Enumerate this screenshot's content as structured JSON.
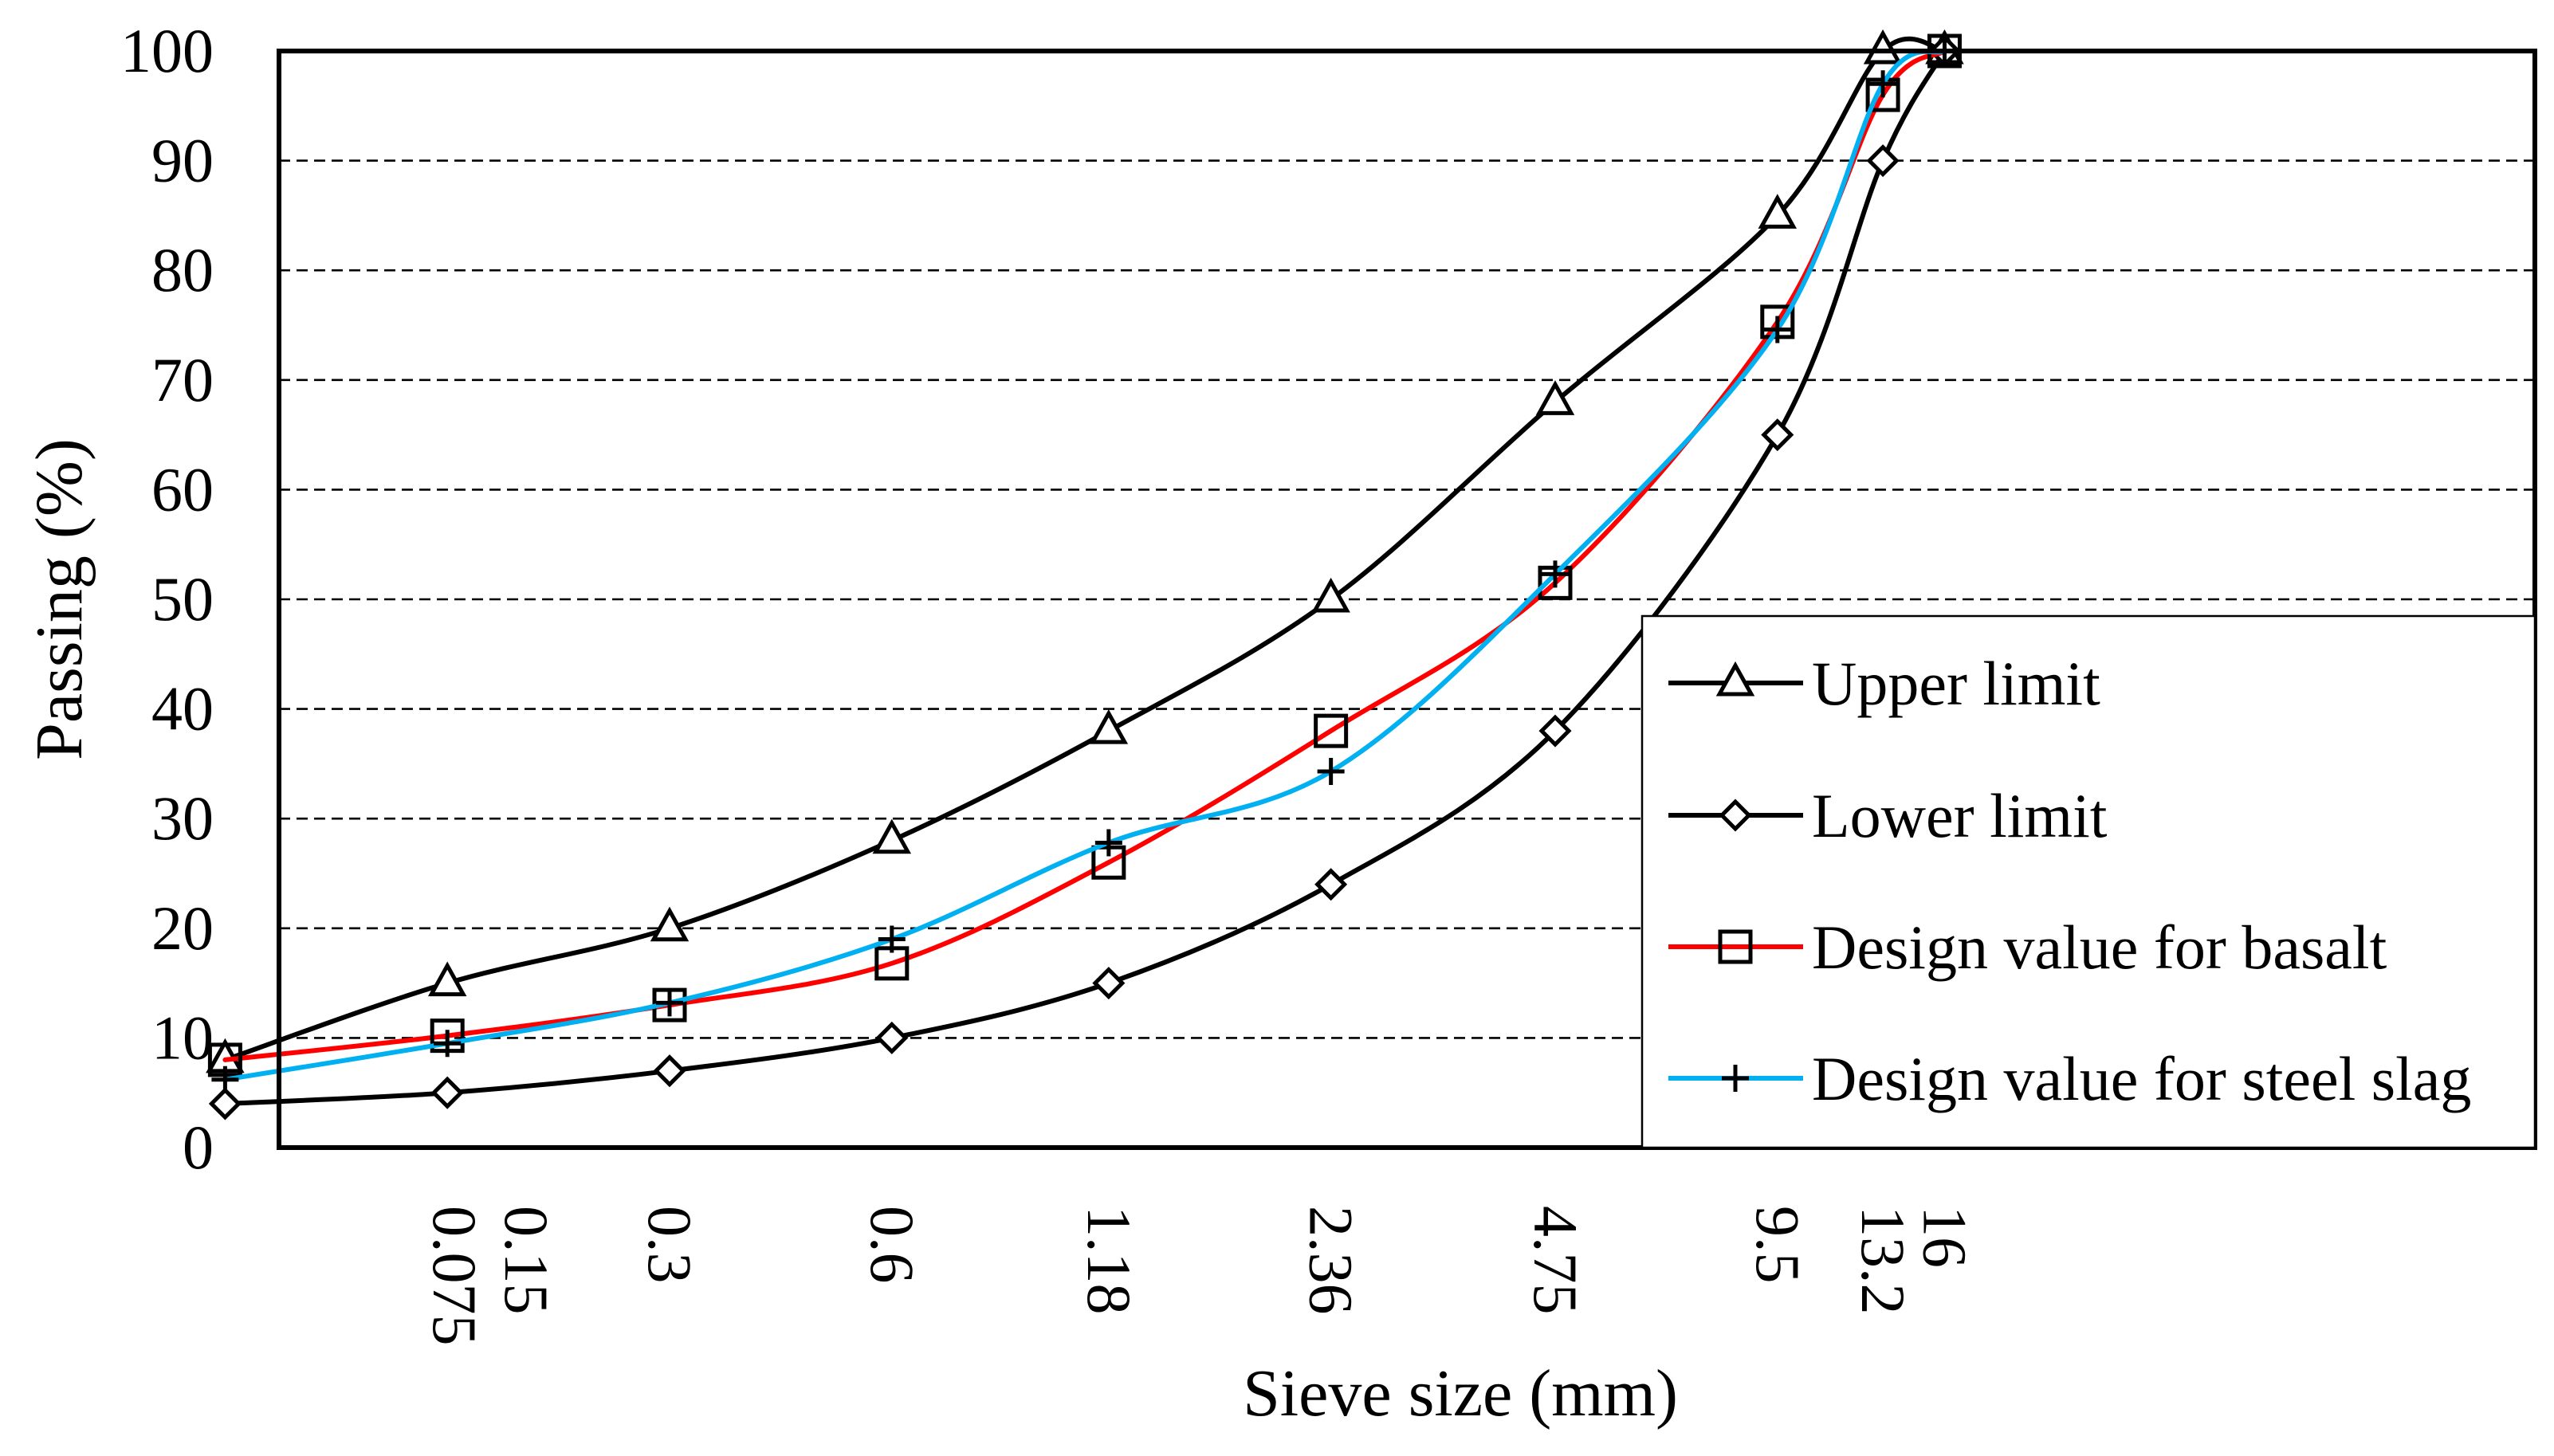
{
  "chart_data": {
    "type": "line",
    "title": "",
    "xlabel": "Sieve size (mm)",
    "ylabel": "Passing (%)",
    "ylim": [
      0,
      100
    ],
    "yticks": [
      "0",
      "10",
      "20",
      "30",
      "40",
      "50",
      "60",
      "70",
      "80",
      "90",
      "100"
    ],
    "grid": "horizontal-dashed",
    "legend_position": "bottom-right",
    "x_scale": "log2-spaced sieve sizes",
    "categories": [
      "0.075",
      "0.15",
      "0.3",
      "0.6",
      "1.18",
      "2.36",
      "4.75",
      "9.5",
      "13.2",
      "16"
    ],
    "series": [
      {
        "name": "Upper limit",
        "marker": "triangle",
        "color": "#000000",
        "values": [
          8,
          15,
          20,
          28,
          38,
          50,
          68,
          85,
          100,
          100
        ]
      },
      {
        "name": "Lower limit",
        "marker": "diamond",
        "color": "#000000",
        "values": [
          4,
          5,
          7,
          10,
          15,
          24,
          38,
          65,
          90,
          100
        ]
      },
      {
        "name": "Design value for basalt",
        "marker": "square",
        "color": "#ff0000",
        "values": [
          8,
          10.2,
          13,
          16.8,
          26,
          38,
          51.5,
          75.3,
          96,
          100
        ]
      },
      {
        "name": "Design value for steel slag",
        "marker": "plus",
        "color": "#00b0f0",
        "values": [
          6.2,
          9.5,
          13.2,
          19,
          27.8,
          34.3,
          52.3,
          74.6,
          97,
          100
        ]
      }
    ]
  }
}
